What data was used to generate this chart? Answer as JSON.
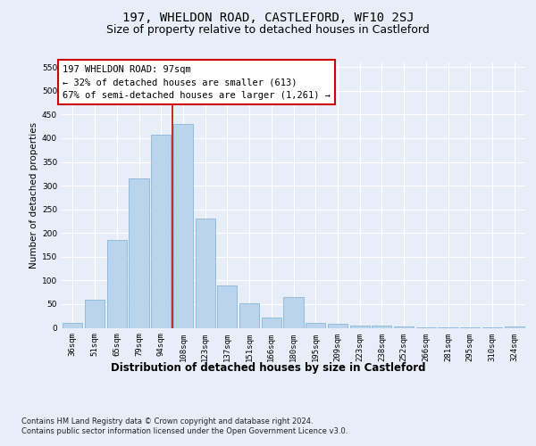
{
  "title1": "197, WHELDON ROAD, CASTLEFORD, WF10 2SJ",
  "title2": "Size of property relative to detached houses in Castleford",
  "xlabel": "Distribution of detached houses by size in Castleford",
  "ylabel": "Number of detached properties",
  "categories": [
    "36sqm",
    "51sqm",
    "65sqm",
    "79sqm",
    "94sqm",
    "108sqm",
    "123sqm",
    "137sqm",
    "151sqm",
    "166sqm",
    "180sqm",
    "195sqm",
    "209sqm",
    "223sqm",
    "238sqm",
    "252sqm",
    "266sqm",
    "281sqm",
    "295sqm",
    "310sqm",
    "324sqm"
  ],
  "values": [
    10,
    59,
    185,
    315,
    408,
    430,
    230,
    90,
    52,
    22,
    65,
    10,
    8,
    5,
    4,
    2,
    1,
    1,
    1,
    1,
    3
  ],
  "bar_color": "#bad4ee",
  "bar_edge_color": "#7aadd4",
  "vline_x": 4.5,
  "vline_color": "#cc0000",
  "annotation_text": "197 WHELDON ROAD: 97sqm\n← 32% of detached houses are smaller (613)\n67% of semi-detached houses are larger (1,261) →",
  "annotation_box_color": "#ffffff",
  "annotation_box_edge_color": "#cc0000",
  "ylim": [
    0,
    560
  ],
  "yticks": [
    0,
    50,
    100,
    150,
    200,
    250,
    300,
    350,
    400,
    450,
    500,
    550
  ],
  "footer1": "Contains HM Land Registry data © Crown copyright and database right 2024.",
  "footer2": "Contains public sector information licensed under the Open Government Licence v3.0.",
  "bg_color": "#e8eef8",
  "plot_bg_color": "#e8eef8",
  "grid_color": "#ffffff",
  "title1_fontsize": 10,
  "title2_fontsize": 9,
  "xlabel_fontsize": 8.5,
  "ylabel_fontsize": 7.5,
  "tick_fontsize": 6.5,
  "annotation_fontsize": 7.5
}
